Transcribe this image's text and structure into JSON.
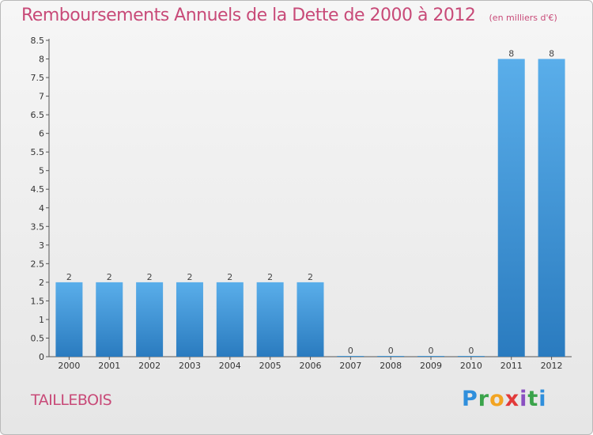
{
  "header": {
    "title": "Remboursements Annuels de la Dette de 2000 à 2012",
    "subtitle": "(en milliers d'€)"
  },
  "footer": {
    "commune": "TAILLEBOIS",
    "logo": {
      "letters": [
        "P",
        "r",
        "o",
        "x",
        "i",
        "t",
        "i"
      ],
      "colors": [
        "#2f8fdc",
        "#3aa34a",
        "#f2a422",
        "#e23a3a",
        "#8a4fc1",
        "#3aa34a",
        "#2f8fdc"
      ]
    }
  },
  "colors": {
    "title": "#c84a78",
    "bar_light": "#5aaeea",
    "bar_dark": "#2a7bbf"
  },
  "chart_data": {
    "type": "bar",
    "categories": [
      "2000",
      "2001",
      "2002",
      "2003",
      "2004",
      "2005",
      "2006",
      "2007",
      "2008",
      "2009",
      "2010",
      "2011",
      "2012"
    ],
    "values": [
      2,
      2,
      2,
      2,
      2,
      2,
      2,
      0,
      0,
      0,
      0,
      8,
      8
    ],
    "data_labels": [
      "2",
      "2",
      "2",
      "2",
      "2",
      "2",
      "2",
      "0",
      "0",
      "0",
      "0",
      "8",
      "8"
    ],
    "ylim": [
      0,
      8.5
    ],
    "yticks": [
      0,
      0.5,
      1,
      1.5,
      2,
      2.5,
      3,
      3.5,
      4,
      4.5,
      5,
      5.5,
      6,
      6.5,
      7,
      7.5,
      8,
      8.5
    ],
    "ytick_labels": [
      "0",
      "0.5",
      "1",
      "1.5",
      "2",
      "2.5",
      "3",
      "3.5",
      "4",
      "4.5",
      "5",
      "5.5",
      "6",
      "6.5",
      "7",
      "7.5",
      "8",
      "8.5"
    ],
    "title": "Remboursements Annuels de la Dette de 2000 à 2012",
    "xlabel": "",
    "ylabel": "",
    "grid": false,
    "legend": "none"
  }
}
